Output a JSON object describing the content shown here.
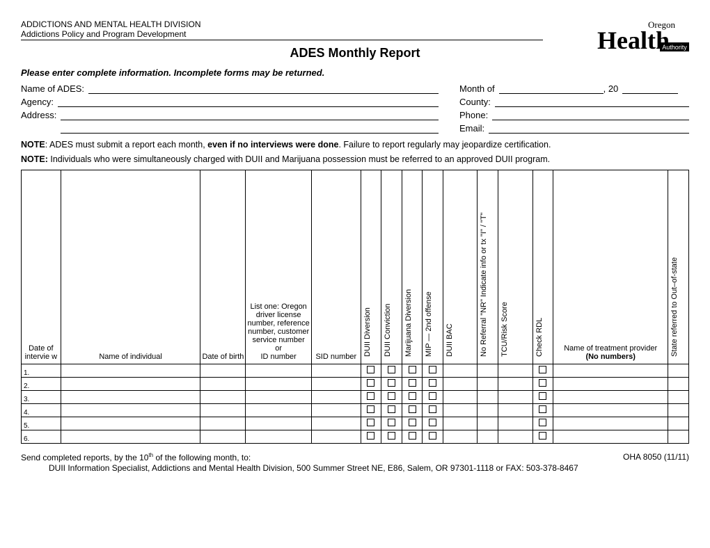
{
  "header": {
    "line1": "ADDICTIONS AND MENTAL HEALTH DIVISION",
    "line2": "Addictions Policy and Program Development",
    "logo_top": "Oregon",
    "logo_main": "Health",
    "logo_sub": "Authority"
  },
  "title": "ADES Monthly Report",
  "instruction": "Please enter complete information. Incomplete forms may be returned.",
  "fields": {
    "name_lbl": "Name of ADES:",
    "month_lbl": "Month of",
    "year_prefix": ", 20",
    "agency_lbl": "Agency:",
    "county_lbl": "County:",
    "address_lbl": "Address:",
    "phone_lbl": "Phone:",
    "email_lbl": "Email:"
  },
  "notes": {
    "n1a": "NOTE",
    "n1b": ": ADES must submit a report each month, ",
    "n1c": "even if no interviews were done",
    "n1d": ".  Failure to report regularly may jeopardize certification.",
    "n2a": "NOTE:",
    "n2b": " Individuals who were simultaneously charged with DUII and Marijuana possession must be referred to an approved DUII program."
  },
  "columns": {
    "c1": "Date of intervie w",
    "c2": "Name of individual",
    "c3": "Date of birth",
    "c4_a": "List one: Oregon driver license number, reference number, customer service number",
    "c4_b": "or",
    "c4_c": "ID number",
    "c5": "SID number",
    "c6": "DUII Diversion",
    "c7": "DUII Conviction",
    "c8": "Marijuana Diversion",
    "c9": "MIP — 2nd offense",
    "c10": "DUII BAC",
    "c11": "No Referral \"NR\" Indicate info or tx \"I\" / \"T\"",
    "c12": "TCU/Risk Score",
    "c13": "Check RDL",
    "c14_a": "Name of treatment provider",
    "c14_b": "(No numbers)",
    "c15": "State referred to  Out–of-state"
  },
  "rows": [
    "1.",
    "2.",
    "3.",
    "4.",
    "5.",
    "6."
  ],
  "footer": {
    "left_a": "Send completed reports, by the 10",
    "left_sup": "th",
    "left_b": " of the following month, to:",
    "right": "OHA 8050 (11/11)",
    "addr": "DUII Information Specialist, Addictions and Mental Health Division, 500 Summer Street NE, E86, Salem, OR 97301-1118 or FAX: 503-378-8467"
  },
  "style": {
    "page_bg": "#ffffff",
    "text_color": "#000000",
    "border_color": "#000000",
    "title_fontsize": 18,
    "body_fontsize": 13,
    "table_fontsize": 11
  }
}
